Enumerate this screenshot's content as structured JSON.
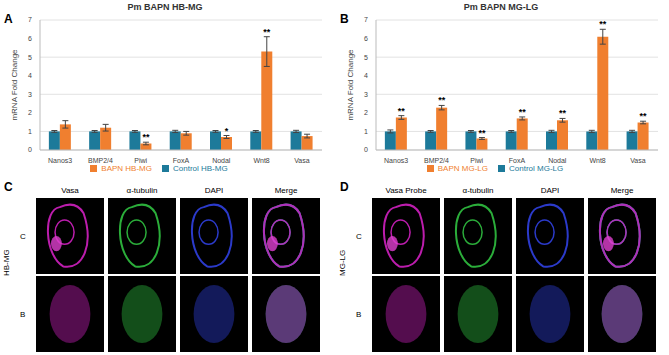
{
  "chart_data": [
    {
      "panel": "A",
      "type": "bar",
      "title": "Pm BAPN HB-MG",
      "y_label": "mRNA Fold Change",
      "categories": [
        "Nanos3",
        "BMP2/4",
        "Piwi",
        "FoxA",
        "Nodal",
        "Wnt8",
        "Vasa"
      ],
      "series": [
        {
          "name": "Control HB-MG",
          "color": "#1d7a9a",
          "values": [
            1,
            1,
            1,
            1,
            1,
            1,
            1
          ],
          "errors": [
            0.05,
            0.05,
            0.05,
            0.06,
            0.05,
            0.05,
            0.06
          ]
        },
        {
          "name": "BAPN HB-MG",
          "color": "#f07f2f",
          "values": [
            1.38,
            1.2,
            0.35,
            0.9,
            0.7,
            5.3,
            0.75
          ],
          "errors": [
            0.2,
            0.18,
            0.07,
            0.1,
            0.08,
            0.8,
            0.1
          ],
          "significance": [
            null,
            null,
            "**",
            null,
            "*",
            "**",
            null
          ]
        }
      ],
      "ylim": [
        0,
        7
      ],
      "yticks": [
        0,
        1,
        2,
        3,
        4,
        5,
        6,
        7
      ],
      "grid": true,
      "legend": "bottom"
    },
    {
      "panel": "B",
      "type": "bar",
      "title": "Pm BAPN MG-LG",
      "y_label": "mRNA Fold Change",
      "categories": [
        "Nanos3",
        "BMP2/4",
        "Piwi",
        "FoxA",
        "Nodal",
        "Wnt8",
        "Vasa"
      ],
      "series": [
        {
          "name": "Control MG-LG",
          "color": "#1d7a9a",
          "values": [
            1,
            1,
            1,
            1,
            1,
            1,
            1
          ],
          "errors": [
            0.08,
            0.05,
            0.05,
            0.05,
            0.06,
            0.06,
            0.06
          ]
        },
        {
          "name": "BAPN MG-LG",
          "color": "#f07f2f",
          "values": [
            1.75,
            2.28,
            0.62,
            1.7,
            1.6,
            6.1,
            1.48
          ],
          "errors": [
            0.1,
            0.12,
            0.05,
            0.08,
            0.1,
            0.4,
            0.07
          ],
          "significance": [
            "**",
            "**",
            "**",
            "**",
            "**",
            "**",
            "**"
          ]
        }
      ],
      "ylim": [
        0,
        7
      ],
      "yticks": [
        0,
        1,
        2,
        3,
        4,
        5,
        6,
        7
      ],
      "grid": true,
      "legend": "bottom"
    }
  ],
  "image_panels": [
    {
      "panel": "C",
      "group": "HB-MG",
      "columns": [
        "Vasa",
        "α-tubulin",
        "DAPI",
        "Merge"
      ],
      "rows": [
        "C",
        "B"
      ]
    },
    {
      "panel": "D",
      "group": "MG-LG",
      "columns": [
        "Vasa Probe",
        "α-tubulin",
        "DAPI",
        "Merge"
      ],
      "rows": [
        "C",
        "B"
      ]
    }
  ]
}
